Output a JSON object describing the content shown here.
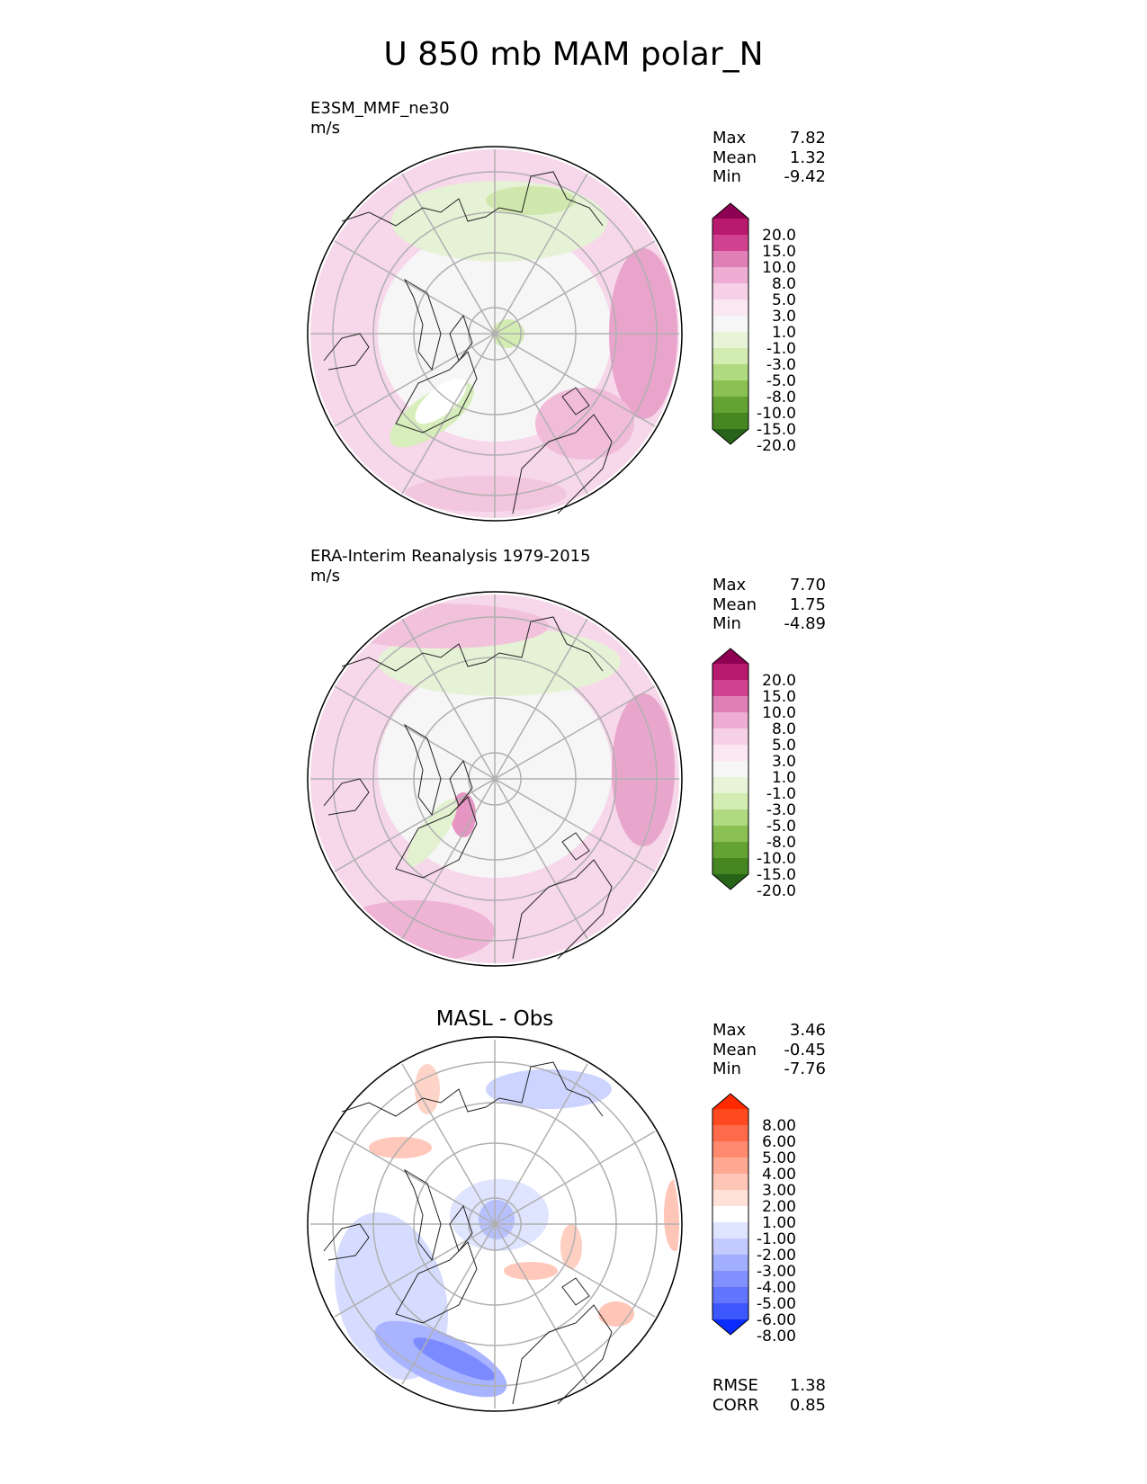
{
  "title": "U 850 mb MAM polar_N",
  "panels": [
    {
      "title": "E3SM_MMF_ne30",
      "units": "m/s",
      "stats": {
        "max_label": "Max",
        "max": "7.82",
        "mean_label": "Mean",
        "mean": "1.32",
        "min_label": "Min",
        "min": "-9.42"
      },
      "colorbar": {
        "labels": [
          "20.0",
          "15.0",
          "10.0",
          "8.0",
          "5.0",
          "3.0",
          "1.0",
          "-1.0",
          "-3.0",
          "-5.0",
          "-8.0",
          "-10.0",
          "-15.0",
          "-20.0"
        ],
        "colors": [
          "#8e0152",
          "#b81a6d",
          "#d0428f",
          "#e07fb5",
          "#eeaed3",
          "#f6d0e6",
          "#fbe7f1",
          "#f6f6f6",
          "#e8f4d8",
          "#d3ecb1",
          "#afda7f",
          "#8ac152",
          "#64a233",
          "#458621",
          "#276419"
        ]
      }
    },
    {
      "title": "ERA-Interim Reanalysis 1979-2015",
      "units": "m/s",
      "stats": {
        "max_label": "Max",
        "max": "7.70",
        "mean_label": "Mean",
        "mean": "1.75",
        "min_label": "Min",
        "min": "-4.89"
      },
      "colorbar": {
        "labels": [
          "20.0",
          "15.0",
          "10.0",
          "8.0",
          "5.0",
          "3.0",
          "1.0",
          "-1.0",
          "-3.0",
          "-5.0",
          "-8.0",
          "-10.0",
          "-15.0",
          "-20.0"
        ],
        "colors": [
          "#8e0152",
          "#b81a6d",
          "#d0428f",
          "#e07fb5",
          "#eeaed3",
          "#f6d0e6",
          "#fbe7f1",
          "#f6f6f6",
          "#e8f4d8",
          "#d3ecb1",
          "#afda7f",
          "#8ac152",
          "#64a233",
          "#458621",
          "#276419"
        ]
      }
    },
    {
      "title": "MASL - Obs",
      "stats": {
        "max_label": "Max",
        "max": "3.46",
        "mean_label": "Mean",
        "mean": "-0.45",
        "min_label": "Min",
        "min": "-7.76"
      },
      "metrics": {
        "rmse_label": "RMSE",
        "rmse": "1.38",
        "corr_label": "CORR",
        "corr": "0.85"
      },
      "colorbar": {
        "labels": [
          "8.00",
          "6.00",
          "5.00",
          "4.00",
          "3.00",
          "2.00",
          "1.00",
          "-1.00",
          "-2.00",
          "-3.00",
          "-4.00",
          "-5.00",
          "-6.00",
          "-8.00"
        ],
        "colors": [
          "#ff2a00",
          "#ff4a1f",
          "#ff6a4a",
          "#ff8a70",
          "#ffa993",
          "#ffc5b6",
          "#ffe1d8",
          "#ffffff",
          "#dfe4ff",
          "#c2caff",
          "#a2aeff",
          "#8291ff",
          "#6175ff",
          "#3d57ff",
          "#0a2cff"
        ]
      }
    }
  ],
  "chart_data": [
    {
      "type": "heatmap",
      "title": "E3SM_MMF_ne30",
      "units": "m/s",
      "projection": "north polar stereographic",
      "levels": [
        -20,
        -15,
        -10,
        -8,
        -5,
        -3,
        -1,
        1,
        3,
        5,
        8,
        10,
        15,
        20
      ],
      "max": 7.82,
      "mean": 1.32,
      "min": -9.42
    },
    {
      "type": "heatmap",
      "title": "ERA-Interim Reanalysis 1979-2015",
      "units": "m/s",
      "projection": "north polar stereographic",
      "levels": [
        -20,
        -15,
        -10,
        -8,
        -5,
        -3,
        -1,
        1,
        3,
        5,
        8,
        10,
        15,
        20
      ],
      "max": 7.7,
      "mean": 1.75,
      "min": -4.89
    },
    {
      "type": "heatmap",
      "title": "MASL - Obs",
      "projection": "north polar stereographic",
      "levels": [
        -8,
        -6,
        -5,
        -4,
        -3,
        -2,
        -1,
        1,
        2,
        3,
        4,
        5,
        6,
        8
      ],
      "max": 3.46,
      "mean": -0.45,
      "min": -7.76,
      "rmse": 1.38,
      "corr": 0.85
    }
  ]
}
